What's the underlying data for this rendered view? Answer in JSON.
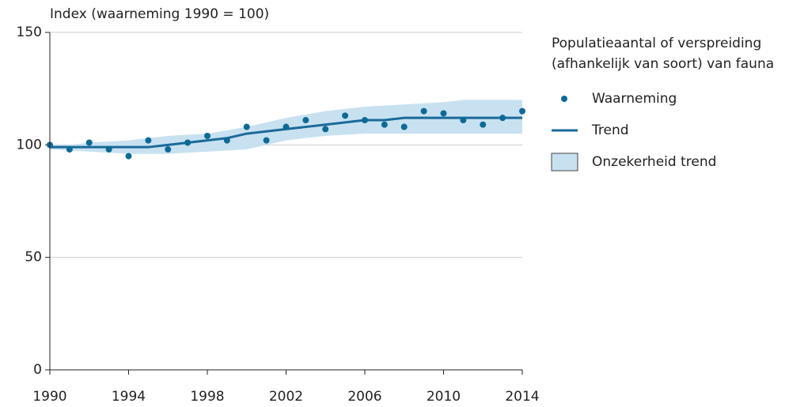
{
  "chart_data": {
    "type": "line",
    "y_label": "Index (waarneming 1990 = 100)",
    "legend_title": "Populatieaantal of verspreiding (afhankelijk van soort) van fauna",
    "legend_position": "right",
    "grid": true,
    "x": [
      1990,
      1991,
      1992,
      1993,
      1994,
      1995,
      1996,
      1997,
      1998,
      1999,
      2000,
      2001,
      2002,
      2003,
      2004,
      2005,
      2006,
      2007,
      2008,
      2009,
      2010,
      2011,
      2012,
      2013,
      2014
    ],
    "xlim": [
      1990,
      2014
    ],
    "xticks": [
      1990,
      1994,
      1998,
      2002,
      2006,
      2010,
      2014
    ],
    "ylim": [
      0,
      150
    ],
    "yticks": [
      0,
      50,
      100,
      150
    ],
    "series": [
      {
        "name": "Onzekerheid trend",
        "mark": "band",
        "color": "#c8e1f1",
        "values_low": [
          98,
          97.5,
          97,
          96.5,
          96,
          96,
          96,
          96.5,
          97,
          97.5,
          98,
          100,
          102,
          103,
          104,
          104.5,
          105,
          105,
          105,
          105,
          105,
          105,
          105,
          105,
          105
        ],
        "values_high": [
          100,
          100,
          101,
          101.5,
          102,
          103,
          104,
          104.5,
          105,
          106.5,
          108,
          110,
          112,
          113.5,
          115,
          116,
          117,
          117.5,
          118,
          118.5,
          119,
          120,
          120,
          120,
          120
        ]
      },
      {
        "name": "Trend",
        "mark": "line",
        "color": "#1a6a9a",
        "values": [
          99,
          99,
          99,
          99,
          99,
          99,
          100,
          101,
          102,
          103,
          105,
          106,
          107,
          108,
          109,
          110,
          111,
          111,
          112,
          112,
          112,
          112,
          112,
          112,
          112
        ]
      },
      {
        "name": "Waarneming",
        "mark": "dot",
        "color": "#0d6a96",
        "values": [
          100,
          98,
          101,
          98,
          95,
          102,
          98,
          101,
          104,
          102,
          108,
          102,
          108,
          111,
          107,
          113,
          111,
          109,
          108,
          115,
          114,
          111,
          109,
          112,
          115
        ]
      }
    ]
  }
}
